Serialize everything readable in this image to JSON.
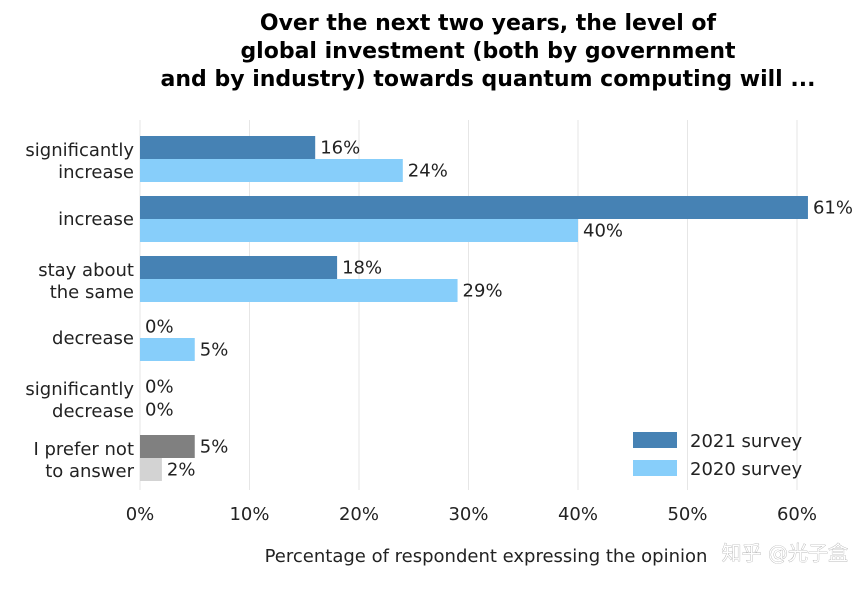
{
  "chart_data": {
    "type": "bar",
    "orientation": "horizontal",
    "title_lines": [
      "Over the next two years, the level of",
      "global investment (both by government",
      "and by industry) towards quantum computing will ..."
    ],
    "categories": [
      [
        "significantly",
        "increase"
      ],
      [
        "increase"
      ],
      [
        "stay about",
        "the same"
      ],
      [
        "decrease"
      ],
      [
        "significantly",
        "decrease"
      ],
      [
        "I prefer not",
        "to answer"
      ]
    ],
    "series": [
      {
        "name": "2021 survey",
        "color": "#4682b4",
        "values": [
          16,
          61,
          18,
          0,
          0,
          5
        ],
        "labels": [
          "16%",
          "61%",
          "18%",
          "0%",
          "0%",
          "5%"
        ]
      },
      {
        "name": "2020 survey",
        "color": "#87cefa",
        "values": [
          24,
          40,
          29,
          5,
          0,
          2
        ],
        "labels": [
          "24%",
          "40%",
          "29%",
          "5%",
          "0%",
          "2%"
        ]
      }
    ],
    "special_colors": {
      "no_answer_2021": "#808080",
      "no_answer_2020": "#d3d3d3"
    },
    "xlim": [
      0,
      62
    ],
    "xticks": [
      0,
      10,
      20,
      30,
      40,
      50,
      60
    ],
    "xtick_labels": [
      "0%",
      "10%",
      "20%",
      "30%",
      "40%",
      "50%",
      "60%"
    ],
    "xlabel": "Percentage of respondent expressing the opinion",
    "grid": "vertical",
    "legend_position": "bottom-right"
  },
  "watermark": "知乎 @光子盒"
}
